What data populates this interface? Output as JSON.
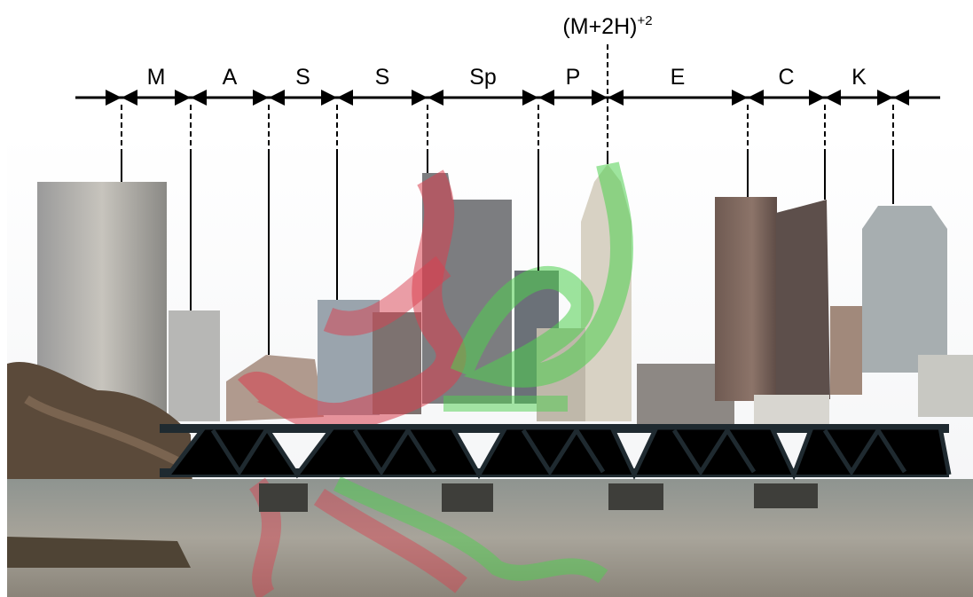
{
  "top_label": {
    "base": "(M+2H)",
    "sup": "+2"
  },
  "segments": [
    "M",
    "A",
    "S",
    "S",
    "Sp",
    "P",
    "E",
    "C",
    "K"
  ]
}
